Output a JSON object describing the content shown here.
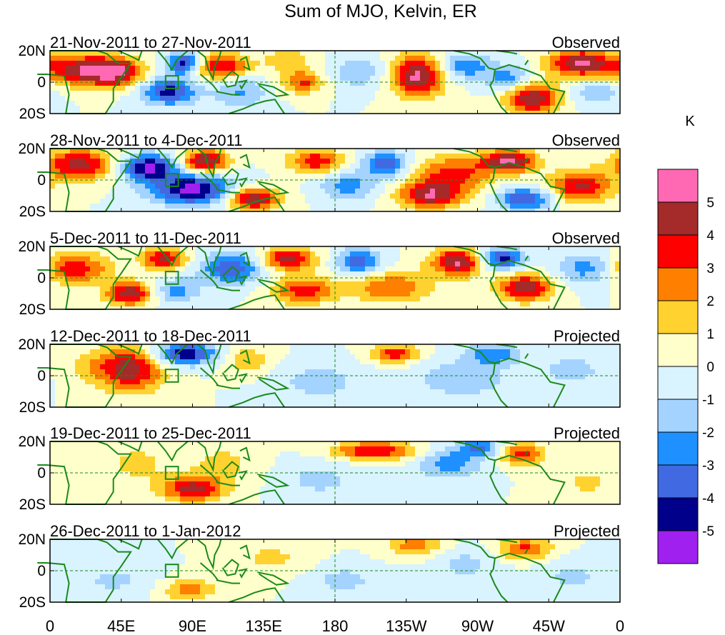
{
  "chart_data": {
    "type": "heatmap",
    "title": "Sum of MJO, Kelvin, ER",
    "units_label": "K",
    "x_tick_labels": [
      "0",
      "45E",
      "90E",
      "135E",
      "180",
      "135W",
      "90W",
      "45W",
      "0"
    ],
    "x_tick_lons": [
      0,
      45,
      90,
      135,
      180,
      225,
      270,
      315,
      360
    ],
    "y_tick_labels": [
      "20N",
      "0",
      "20S"
    ],
    "y_tick_lats": [
      20,
      0,
      -20
    ],
    "xlim": [
      0,
      360
    ],
    "ylim": [
      -20,
      20
    ],
    "colorbar": {
      "levels": [
        -6,
        -5,
        -4,
        -3,
        -2,
        -1,
        0,
        1,
        2,
        3,
        4,
        5,
        6
      ],
      "labels": [
        "-5",
        "-4",
        "-3",
        "-2",
        "-1",
        "0",
        "1",
        "2",
        "3",
        "4",
        "5"
      ],
      "label_values": [
        -5,
        -4,
        -3,
        -2,
        -1,
        0,
        1,
        2,
        3,
        4,
        5
      ],
      "colors": [
        "#a020f0",
        "#00008b",
        "#4169e1",
        "#1e90ff",
        "#a4d3ff",
        "#d9f3ff",
        "#ffffcc",
        "#ffd230",
        "#ff7f00",
        "#ff0000",
        "#a52a2a",
        "#ff69b4"
      ]
    },
    "panels": [
      {
        "period": "21-Nov-2011 to 27-Nov-2011",
        "status": "Observed",
        "blobs": [
          {
            "lon": 20,
            "lat": 8,
            "amp": 4.6,
            "sx": 18,
            "sy": 7
          },
          {
            "lon": 42,
            "lat": 6,
            "amp": 4.0,
            "sx": 12,
            "sy": 6
          },
          {
            "lon": 85,
            "lat": 12,
            "amp": -4.6,
            "sx": 8,
            "sy": 5
          },
          {
            "lon": 75,
            "lat": -6,
            "amp": -4.5,
            "sx": 12,
            "sy": 6
          },
          {
            "lon": 108,
            "lat": 10,
            "amp": 4.2,
            "sx": 12,
            "sy": 6
          },
          {
            "lon": 120,
            "lat": -6,
            "amp": -2.2,
            "sx": 12,
            "sy": 7
          },
          {
            "lon": 150,
            "lat": 14,
            "amp": 1.6,
            "sx": 12,
            "sy": 6
          },
          {
            "lon": 160,
            "lat": 0,
            "amp": 3.2,
            "sx": 10,
            "sy": 5
          },
          {
            "lon": 195,
            "lat": 6,
            "amp": -1.8,
            "sx": 14,
            "sy": 7
          },
          {
            "lon": 232,
            "lat": 4,
            "amp": 5.4,
            "sx": 12,
            "sy": 9
          },
          {
            "lon": 262,
            "lat": 10,
            "amp": -2.8,
            "sx": 12,
            "sy": 6
          },
          {
            "lon": 290,
            "lat": 2,
            "amp": -2.6,
            "sx": 10,
            "sy": 6
          },
          {
            "lon": 305,
            "lat": -10,
            "amp": 5.0,
            "sx": 12,
            "sy": 7
          },
          {
            "lon": 335,
            "lat": 12,
            "amp": 5.2,
            "sx": 14,
            "sy": 6
          },
          {
            "lon": 345,
            "lat": -6,
            "amp": -1.8,
            "sx": 12,
            "sy": 6
          }
        ]
      },
      {
        "period": "28-Nov-2011 to 4-Dec-2011",
        "status": "Observed",
        "blobs": [
          {
            "lon": 18,
            "lat": 10,
            "amp": 4.4,
            "sx": 16,
            "sy": 7
          },
          {
            "lon": 62,
            "lat": 8,
            "amp": -5.2,
            "sx": 12,
            "sy": 6
          },
          {
            "lon": 90,
            "lat": -6,
            "amp": -5.4,
            "sx": 18,
            "sy": 7
          },
          {
            "lon": 98,
            "lat": 12,
            "amp": 5.2,
            "sx": 10,
            "sy": 5
          },
          {
            "lon": 128,
            "lat": -12,
            "amp": 5.0,
            "sx": 12,
            "sy": 5
          },
          {
            "lon": 168,
            "lat": 12,
            "amp": 3.8,
            "sx": 12,
            "sy": 5
          },
          {
            "lon": 188,
            "lat": -4,
            "amp": -2.5,
            "sx": 12,
            "sy": 6
          },
          {
            "lon": 212,
            "lat": 10,
            "amp": -3.8,
            "sx": 10,
            "sy": 6
          },
          {
            "lon": 240,
            "lat": -10,
            "amp": 4.6,
            "sx": 14,
            "sy": 6
          },
          {
            "lon": 255,
            "lat": 4,
            "amp": 3.4,
            "sx": 18,
            "sy": 8
          },
          {
            "lon": 290,
            "lat": 12,
            "amp": 5.2,
            "sx": 12,
            "sy": 5
          },
          {
            "lon": 300,
            "lat": -12,
            "amp": -4.2,
            "sx": 12,
            "sy": 5
          },
          {
            "lon": 335,
            "lat": -4,
            "amp": 4.2,
            "sx": 14,
            "sy": 7
          }
        ]
      },
      {
        "period": "5-Dec-2011 to 11-Dec-2011",
        "status": "Observed",
        "blobs": [
          {
            "lon": 15,
            "lat": 6,
            "amp": 3.8,
            "sx": 16,
            "sy": 7
          },
          {
            "lon": 50,
            "lat": -10,
            "amp": 5.0,
            "sx": 10,
            "sy": 5
          },
          {
            "lon": 72,
            "lat": 12,
            "amp": 4.2,
            "sx": 10,
            "sy": 5
          },
          {
            "lon": 80,
            "lat": -8,
            "amp": -2.4,
            "sx": 10,
            "sy": 6
          },
          {
            "lon": 115,
            "lat": 6,
            "amp": -3.8,
            "sx": 14,
            "sy": 7
          },
          {
            "lon": 150,
            "lat": 12,
            "amp": 4.6,
            "sx": 12,
            "sy": 5
          },
          {
            "lon": 160,
            "lat": -8,
            "amp": 3.6,
            "sx": 14,
            "sy": 6
          },
          {
            "lon": 195,
            "lat": 10,
            "amp": -3.6,
            "sx": 10,
            "sy": 6
          },
          {
            "lon": 215,
            "lat": -6,
            "amp": 3.0,
            "sx": 18,
            "sy": 7
          },
          {
            "lon": 258,
            "lat": 10,
            "amp": 5.2,
            "sx": 12,
            "sy": 6
          },
          {
            "lon": 285,
            "lat": 12,
            "amp": -4.6,
            "sx": 10,
            "sy": 5
          },
          {
            "lon": 300,
            "lat": -6,
            "amp": 4.8,
            "sx": 12,
            "sy": 6
          },
          {
            "lon": 340,
            "lat": 6,
            "amp": -2.6,
            "sx": 14,
            "sy": 7
          }
        ]
      },
      {
        "period": "12-Dec-2011 to 18-Dec-2011",
        "status": "Projected",
        "blobs": [
          {
            "lon": 52,
            "lat": 4,
            "amp": 4.4,
            "sx": 14,
            "sy": 10
          },
          {
            "lon": 28,
            "lat": 6,
            "amp": 1.4,
            "sx": 14,
            "sy": 8
          },
          {
            "lon": 85,
            "lat": 14,
            "amp": -4.8,
            "sx": 14,
            "sy": 5
          },
          {
            "lon": 125,
            "lat": 10,
            "amp": 1.8,
            "sx": 10,
            "sy": 6
          },
          {
            "lon": 170,
            "lat": -4,
            "amp": -1.6,
            "sx": 18,
            "sy": 8
          },
          {
            "lon": 218,
            "lat": 14,
            "amp": 3.6,
            "sx": 10,
            "sy": 4
          },
          {
            "lon": 260,
            "lat": -2,
            "amp": -2.0,
            "sx": 20,
            "sy": 8
          },
          {
            "lon": 280,
            "lat": 14,
            "amp": -2.8,
            "sx": 12,
            "sy": 5
          },
          {
            "lon": 330,
            "lat": 4,
            "amp": -1.4,
            "sx": 16,
            "sy": 8
          }
        ]
      },
      {
        "period": "19-Dec-2011 to 25-Dec-2011",
        "status": "Projected",
        "blobs": [
          {
            "lon": 90,
            "lat": -10,
            "amp": 4.4,
            "sx": 14,
            "sy": 6
          },
          {
            "lon": 55,
            "lat": 6,
            "amp": 1.4,
            "sx": 14,
            "sy": 8
          },
          {
            "lon": 110,
            "lat": 6,
            "amp": 1.4,
            "sx": 14,
            "sy": 8
          },
          {
            "lon": 170,
            "lat": -4,
            "amp": -1.4,
            "sx": 16,
            "sy": 8
          },
          {
            "lon": 205,
            "lat": 14,
            "amp": 4.2,
            "sx": 18,
            "sy": 4
          },
          {
            "lon": 252,
            "lat": 6,
            "amp": -2.6,
            "sx": 14,
            "sy": 7
          },
          {
            "lon": 272,
            "lat": 16,
            "amp": -3.0,
            "sx": 10,
            "sy": 4
          },
          {
            "lon": 298,
            "lat": 12,
            "amp": 3.6,
            "sx": 10,
            "sy": 5
          },
          {
            "lon": 340,
            "lat": -6,
            "amp": 1.2,
            "sx": 14,
            "sy": 8
          }
        ]
      },
      {
        "period": "26-Dec-2011 to 1-Jan-2012",
        "status": "Projected",
        "blobs": [
          {
            "lon": 88,
            "lat": -12,
            "amp": 2.4,
            "sx": 12,
            "sy": 5
          },
          {
            "lon": 40,
            "lat": -6,
            "amp": -1.2,
            "sx": 18,
            "sy": 8
          },
          {
            "lon": 140,
            "lat": 8,
            "amp": 1.2,
            "sx": 18,
            "sy": 8
          },
          {
            "lon": 185,
            "lat": -6,
            "amp": -1.4,
            "sx": 16,
            "sy": 7
          },
          {
            "lon": 230,
            "lat": 16,
            "amp": 2.6,
            "sx": 12,
            "sy": 5
          },
          {
            "lon": 262,
            "lat": 4,
            "amp": -1.4,
            "sx": 14,
            "sy": 7
          },
          {
            "lon": 300,
            "lat": 14,
            "amp": 3.2,
            "sx": 12,
            "sy": 5
          },
          {
            "lon": 330,
            "lat": -4,
            "amp": -1.2,
            "sx": 16,
            "sy": 8
          }
        ]
      }
    ]
  }
}
